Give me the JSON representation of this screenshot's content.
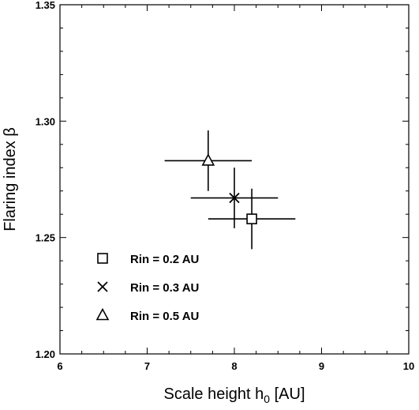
{
  "chart_data": {
    "type": "scatter",
    "title": "",
    "xlabel_main": "Scale height h",
    "xlabel_sub": "0",
    "xlabel_unit": " [AU]",
    "ylabel": "Flaring index β",
    "xlim": [
      6,
      10
    ],
    "ylim": [
      1.2,
      1.35
    ],
    "xticks": [
      6,
      7,
      8,
      9,
      10
    ],
    "xtick_labels": [
      "6",
      "7",
      "8",
      "9",
      "10"
    ],
    "yticks": [
      1.2,
      1.25,
      1.3,
      1.35
    ],
    "ytick_labels": [
      "1.20",
      "1.25",
      "1.30",
      "1.35"
    ],
    "grid": false,
    "legend_position": "bottom-left",
    "series": [
      {
        "name": "Rin = 0.2 AU",
        "marker": "square",
        "x": 8.2,
        "y": 1.258,
        "xerr": 0.5,
        "yerr": 0.013
      },
      {
        "name": "Rin = 0.3 AU",
        "marker": "cross",
        "x": 8.0,
        "y": 1.267,
        "xerr": 0.5,
        "yerr": 0.013
      },
      {
        "name": "Rin = 0.5 AU",
        "marker": "triangle",
        "x": 7.7,
        "y": 1.283,
        "xerr": 0.5,
        "yerr": 0.013
      }
    ]
  }
}
